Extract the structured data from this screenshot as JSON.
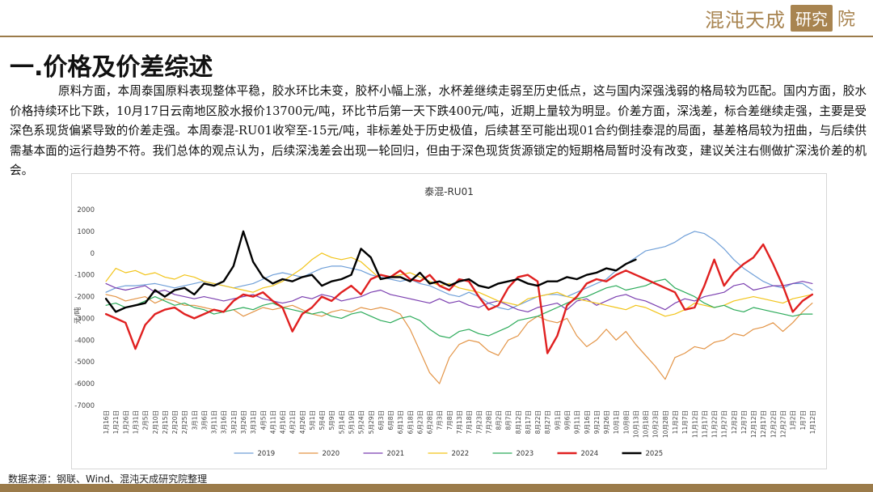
{
  "brand": {
    "name_part1": "混沌天成",
    "name_part2_box": "研究",
    "name_part3": "院",
    "color": "#a88450"
  },
  "section_title": "一.价格及价差综述",
  "paragraph": "原料方面，本周泰国原料表现整体平稳，胶水环比未变，胶杯小幅上涨，水杯差继续走弱至历史低点，这与国内深强浅弱的格局较为匹配。国内方面，胶水价格持续环比下跌，10月17日云南地区胶水报价13700元/吨，环比节后第一天下跌400元/吨，近期上量较为明显。价差方面，深浅差，标合差继续走强，主要是受深色系现货偏紧导致的价差走强。本周泰混-RU01收窄至-15元/吨，非标差处于历史极值，后续甚至可能出现01合约倒挂泰混的局面，基差格局较为扭曲，与后续供需基本面的运行趋势不符。我们总体的观点认为，后续深浅差会出现一轮回归，但由于深色现货货源锁定的短期格局暂时没有改变，建议关注右侧做扩深浅价差的机会。",
  "source": "数据来源：钢联、Wind、混沌天成研究院整理",
  "chart_data": {
    "type": "line",
    "title": "泰混-RU01",
    "ylabel": "元/吨",
    "ylim": [
      -7000,
      2000
    ],
    "yticks": [
      2000,
      1000,
      0,
      -1000,
      -2000,
      -3000,
      -4000,
      -5000,
      -6000,
      -7000
    ],
    "x_tick_labels": [
      "1月16日",
      "1月21日",
      "1月26日",
      "1月31日",
      "2月5日",
      "2月10日",
      "2月15日",
      "2月20日",
      "2月25日",
      "3月1日",
      "3月6日",
      "3月11日",
      "3月16日",
      "3月21日",
      "3月26日",
      "3月31日",
      "4月5日",
      "4月11日",
      "4月16日",
      "4月21日",
      "4月26日",
      "5月1日",
      "5月4日",
      "5月9日",
      "5月14日",
      "5月19日",
      "5月24日",
      "5月29日",
      "6月3日",
      "6月8日",
      "6月13日",
      "6月18日",
      "6月23日",
      "6月28日",
      "7月3日",
      "7月8日",
      "7月13日",
      "7月18日",
      "7月23日",
      "7月28日",
      "8月2日",
      "8月7日",
      "8月12日",
      "8月17日",
      "8月22日",
      "8月27日",
      "9月1日",
      "9月6日",
      "9月11日",
      "9月16日",
      "9月21日",
      "9月26日",
      "10月1日",
      "10月8日",
      "10月13日",
      "10月18日",
      "10月23日",
      "10月28日",
      "11月2日",
      "11月7日",
      "11月12日",
      "11月17日",
      "11月22日",
      "11月27日",
      "12月2日",
      "12月7日",
      "12月12日",
      "12月17日",
      "12月22日",
      "12月27日",
      "1月2日",
      "1月7日",
      "1月12日"
    ],
    "grid": false,
    "legend_position": "bottom",
    "series": [
      {
        "name": "2019",
        "color": "#6f9fd8",
        "width": 1.2,
        "values": [
          -1800,
          -1600,
          -1500,
          -1500,
          -1450,
          -1400,
          -1500,
          -1600,
          -1500,
          -1400,
          -1300,
          -1400,
          -1500,
          -1600,
          -1500,
          -1400,
          -1200,
          -1000,
          -900,
          -1000,
          -1100,
          -900,
          -700,
          -600,
          -600,
          -700,
          -800,
          -1000,
          -1100,
          -1200,
          -1300,
          -1200,
          -1400,
          -1500,
          -1700,
          -1900,
          -2000,
          -1800,
          -2000,
          -2300,
          -2500,
          -2600,
          -2400,
          -2200,
          -2000,
          -1900,
          -1900,
          -2000,
          -1800,
          -1600,
          -1400,
          -1200,
          -800,
          -500,
          -200,
          100,
          200,
          300,
          500,
          800,
          1000,
          900,
          600,
          200,
          -300,
          -700,
          -1000,
          -1300,
          -1500,
          -1600,
          -1400,
          -1400,
          -1700
        ]
      },
      {
        "name": "2020",
        "color": "#e39446",
        "width": 1.2,
        "values": [
          -1900,
          -2000,
          -2200,
          -2100,
          -2000,
          -2300,
          -2100,
          -2200,
          -2400,
          -2400,
          -2500,
          -2600,
          -2700,
          -2600,
          -2900,
          -2700,
          -2500,
          -2600,
          -2500,
          -2400,
          -2600,
          -2800,
          -2900,
          -2700,
          -2600,
          -2700,
          -2500,
          -2600,
          -2500,
          -2600,
          -2800,
          -3500,
          -4500,
          -5500,
          -6000,
          -4800,
          -4200,
          -4000,
          -4100,
          -4500,
          -4700,
          -4000,
          -3800,
          -3200,
          -2900,
          -3100,
          -3200,
          -3000,
          -3800,
          -4300,
          -4000,
          -3500,
          -4000,
          -3600,
          -4200,
          -4700,
          -5200,
          -5800,
          -4800,
          -4600,
          -4300,
          -4400,
          -4100,
          -4000,
          -3700,
          -3800,
          -3500,
          -3400,
          -3200,
          -3600,
          -3200,
          -2700,
          -2300
        ]
      },
      {
        "name": "2021",
        "color": "#7b3fb0",
        "width": 1.2,
        "values": [
          -1400,
          -1600,
          -1700,
          -1600,
          -1500,
          -1800,
          -1700,
          -1900,
          -2000,
          -2100,
          -2000,
          -2100,
          -2200,
          -2100,
          -2000,
          -1900,
          -2100,
          -2200,
          -2300,
          -2200,
          -2000,
          -2100,
          -1900,
          -2000,
          -2200,
          -2100,
          -2000,
          -1800,
          -1700,
          -1900,
          -2000,
          -2100,
          -2200,
          -2300,
          -2100,
          -2300,
          -2200,
          -2400,
          -2500,
          -2300,
          -2200,
          -2400,
          -2600,
          -2700,
          -2500,
          -2400,
          -2300,
          -2600,
          -2200,
          -2100,
          -2400,
          -2200,
          -2000,
          -1900,
          -2100,
          -2200,
          -2400,
          -2600,
          -2300,
          -2100,
          -2200,
          -2000,
          -1900,
          -1800,
          -1500,
          -1400,
          -1700,
          -1600,
          -1500,
          -1500,
          -1400,
          -1300,
          -1400
        ]
      },
      {
        "name": "2022",
        "color": "#f2c419",
        "width": 1.2,
        "values": [
          -1300,
          -700,
          -900,
          -800,
          -1000,
          -900,
          -1100,
          -1200,
          -1000,
          -1100,
          -1300,
          -1400,
          -1500,
          -1600,
          -1700,
          -1800,
          -1600,
          -1500,
          -1300,
          -1000,
          -700,
          -300,
          0,
          -200,
          -300,
          -200,
          -400,
          -800,
          -1200,
          -1100,
          -1000,
          -900,
          -1100,
          -1300,
          -1500,
          -1400,
          -1600,
          -1700,
          -1800,
          -2000,
          -2200,
          -2300,
          -2400,
          -2100,
          -2000,
          -1900,
          -1800,
          -2000,
          -2100,
          -2200,
          -2300,
          -2400,
          -2500,
          -2600,
          -2400,
          -2500,
          -2700,
          -2900,
          -2800,
          -2600,
          -2300,
          -2400,
          -2500,
          -2400,
          -2200,
          -2100,
          -2000,
          -2100,
          -2200,
          -2300,
          -2100,
          -2000,
          -1900
        ]
      },
      {
        "name": "2023",
        "color": "#2cab5a",
        "width": 1.2,
        "values": [
          -2400,
          -2300,
          -2500,
          -2400,
          -2200,
          -2000,
          -2200,
          -2400,
          -2300,
          -2500,
          -2600,
          -2800,
          -2700,
          -2600,
          -2500,
          -2600,
          -2400,
          -2300,
          -2500,
          -2600,
          -2700,
          -2800,
          -2700,
          -2900,
          -3000,
          -2800,
          -2700,
          -2900,
          -3100,
          -3200,
          -3000,
          -2900,
          -3100,
          -3500,
          -3800,
          -3900,
          -3600,
          -3500,
          -3700,
          -3800,
          -3600,
          -3400,
          -3100,
          -3000,
          -2900,
          -2700,
          -2500,
          -2300,
          -2100,
          -2000,
          -1800,
          -1600,
          -1500,
          -1700,
          -1600,
          -1500,
          -1300,
          -1200,
          -1600,
          -1800,
          -2000,
          -2300,
          -2500,
          -2400,
          -2600,
          -2700,
          -2500,
          -2600,
          -2700,
          -2800,
          -2900,
          -2800,
          -2800
        ]
      },
      {
        "name": "2024",
        "color": "#e02020",
        "width": 2.4,
        "values": [
          -2800,
          -3000,
          -3200,
          -4400,
          -3300,
          -2800,
          -2600,
          -2500,
          -2800,
          -3000,
          -2800,
          -2600,
          -2700,
          -2200,
          -1900,
          -2000,
          -1800,
          -2200,
          -2500,
          -3600,
          -2800,
          -2500,
          -2000,
          -2200,
          -1800,
          -1500,
          -1900,
          -1200,
          -1000,
          -1100,
          -800,
          -1200,
          -1300,
          -1000,
          -1500,
          -1700,
          -1200,
          -1300,
          -2000,
          -2600,
          -2400,
          -1600,
          -1100,
          -1000,
          -1300,
          -4600,
          -3800,
          -2400,
          -2000,
          -1400,
          -1200,
          -1300,
          -1000,
          -800,
          -1000,
          -1200,
          -1400,
          -1600,
          -1800,
          -2600,
          -2500,
          -1500,
          -300,
          -1500,
          -900,
          -500,
          -200,
          400,
          -500,
          -1500,
          -2700,
          -2200,
          -1900
        ]
      },
      {
        "name": "2025",
        "color": "#000000",
        "width": 2.4,
        "values": [
          -2100,
          -2700,
          -2500,
          -2400,
          -2300,
          -1700,
          -2000,
          -1700,
          -1600,
          -1900,
          -1400,
          -1500,
          -1300,
          -600,
          1000,
          -400,
          -1100,
          -1400,
          -1200,
          -1300,
          -1100,
          -1000,
          -1500,
          -1300,
          -1200,
          -1000,
          200,
          -200,
          -1200,
          -1100,
          -1100,
          -1300,
          -900,
          -1400,
          -1300,
          -1500,
          -1300,
          -1200,
          -1500,
          -1600,
          -1400,
          -1300,
          -1200,
          -1400,
          -1500,
          -1300,
          -1300,
          -1100,
          -1200,
          -1000,
          -900,
          -700,
          -800,
          -500,
          -300,
          null,
          null,
          null,
          null,
          null,
          null,
          null,
          null,
          null,
          null,
          null,
          null,
          null,
          null,
          null,
          null,
          null,
          null
        ]
      }
    ]
  }
}
